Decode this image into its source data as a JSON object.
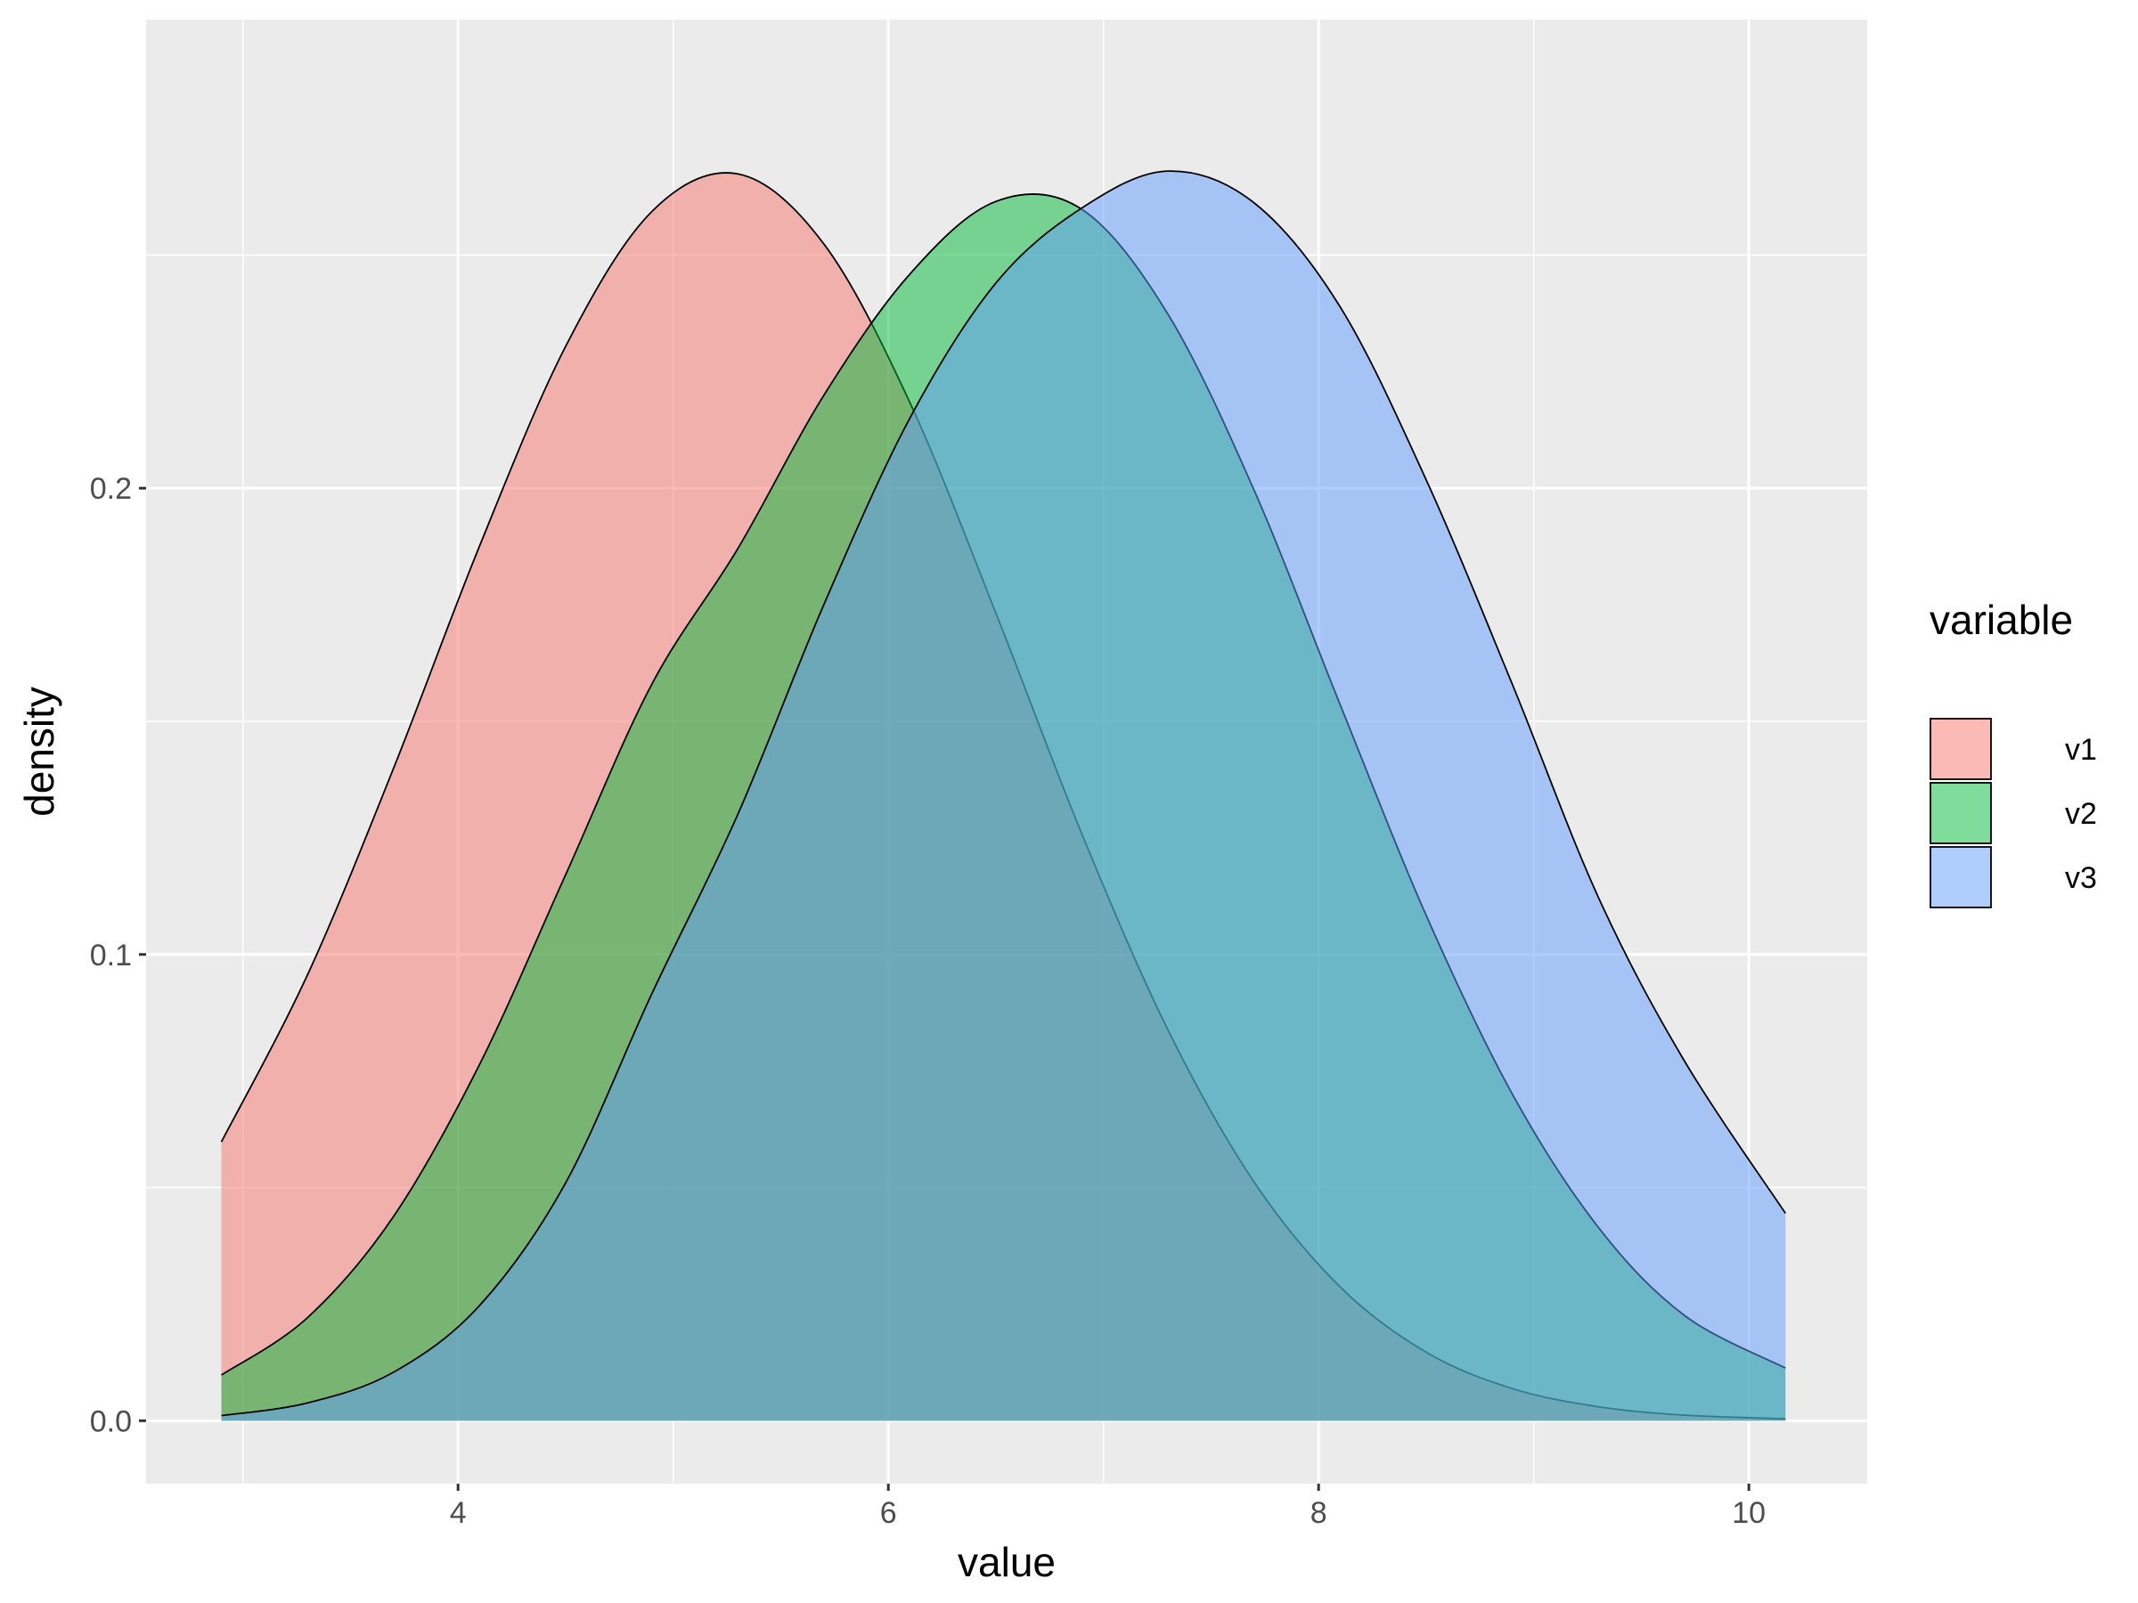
{
  "chart_data": {
    "type": "area",
    "subtype": "density",
    "xlabel": "value",
    "ylabel": "density",
    "xlim": [
      2.55,
      10.55
    ],
    "ylim": [
      -0.0135,
      0.3005
    ],
    "x_ticks": [
      4,
      6,
      8,
      10
    ],
    "x_tick_labels": [
      "4",
      "6",
      "8",
      "10"
    ],
    "y_ticks": [
      0.0,
      0.1,
      0.2
    ],
    "y_tick_labels": [
      "0.0",
      "0.1",
      "0.2"
    ],
    "grid": true,
    "legend": {
      "title": "variable",
      "position": "right"
    },
    "fill_opacity": 0.5,
    "x": [
      2.9,
      3.3,
      3.7,
      4.1,
      4.5,
      4.9,
      5.3,
      5.7,
      6.1,
      6.5,
      6.9,
      7.3,
      7.7,
      8.1,
      8.5,
      8.9,
      9.3,
      9.7,
      10.17
    ],
    "series": [
      {
        "name": "v1",
        "color": "#F8766D",
        "values": [
          0.0598,
          0.0956,
          0.1399,
          0.1876,
          0.2304,
          0.2593,
          0.2674,
          0.2524,
          0.2184,
          0.1732,
          0.1258,
          0.0838,
          0.0512,
          0.0287,
          0.0147,
          0.0069,
          0.003,
          0.0012,
          0.0004
        ]
      },
      {
        "name": "v2",
        "color": "#00BA38",
        "values": [
          0.0098,
          0.0221,
          0.0438,
          0.0764,
          0.1171,
          0.1579,
          0.187,
          0.2199,
          0.2459,
          0.2615,
          0.2598,
          0.2373,
          0.1996,
          0.1536,
          0.1084,
          0.0701,
          0.0415,
          0.0226,
          0.0113
        ]
      },
      {
        "name": "v3",
        "color": "#619CFF",
        "values": [
          0.0011,
          0.0038,
          0.0104,
          0.0247,
          0.051,
          0.0915,
          0.13,
          0.175,
          0.215,
          0.244,
          0.2601,
          0.268,
          0.2612,
          0.2389,
          0.2018,
          0.158,
          0.1123,
          0.0772,
          0.0445
        ]
      }
    ]
  }
}
